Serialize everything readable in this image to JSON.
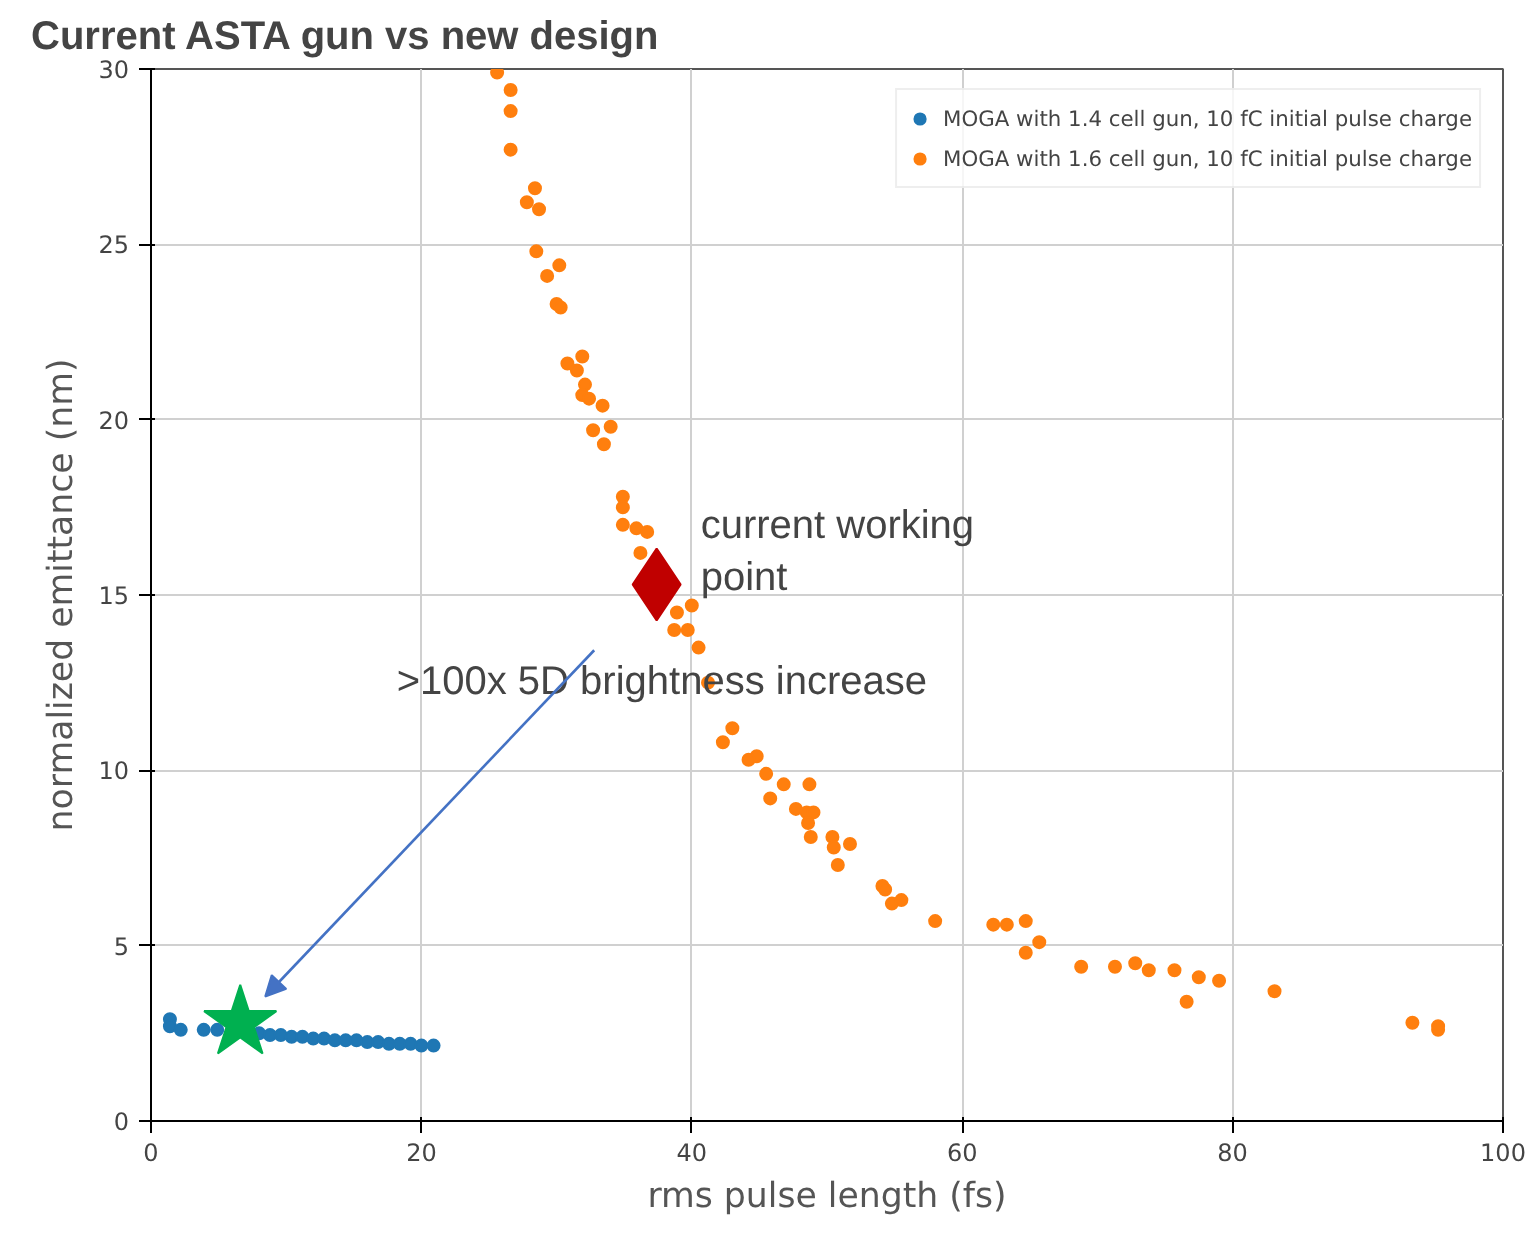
{
  "chart_data": {
    "type": "scatter",
    "title": "Current ASTA gun vs new design",
    "xlabel": "rms pulse length (fs)",
    "ylabel": "normalized emittance (nm)",
    "xlim": [
      0,
      100
    ],
    "ylim": [
      0,
      30
    ],
    "xticks": [
      0,
      20,
      40,
      60,
      80,
      100
    ],
    "yticks": [
      0,
      5,
      10,
      15,
      20,
      25,
      30
    ],
    "grid": true,
    "legend": "top right",
    "marker": "circle",
    "series": [
      {
        "name": "MOGA with 1.4 cell gun, 10 fC initial pulse charge",
        "color": "#1f77b4",
        "x": [
          1.4,
          1.4,
          2.2,
          3.9,
          4.9,
          8.0,
          8.8,
          9.6,
          10.4,
          11.2,
          12.0,
          12.8,
          13.6,
          14.4,
          15.2,
          16.0,
          16.8,
          17.6,
          18.4,
          19.2,
          20.0,
          20.9
        ],
        "values": [
          2.9,
          2.7,
          2.6,
          2.6,
          2.6,
          2.5,
          2.45,
          2.45,
          2.4,
          2.4,
          2.35,
          2.35,
          2.3,
          2.3,
          2.3,
          2.25,
          2.25,
          2.2,
          2.2,
          2.2,
          2.15,
          2.15
        ]
      },
      {
        "name": "MOGA with 1.6 cell gun, 10 fC initial pulse charge",
        "color": "#ff7f0e",
        "x": [
          25.6,
          26.6,
          26.6,
          26.6,
          28.4,
          27.8,
          28.7,
          28.5,
          30.2,
          29.3,
          30.0,
          30.3,
          30.8,
          31.9,
          31.5,
          32.1,
          31.9,
          32.4,
          33.4,
          32.7,
          34.0,
          33.5,
          34.9,
          34.9,
          34.9,
          35.9,
          36.7,
          36.2,
          40.0,
          38.9,
          38.7,
          39.7,
          40.5,
          41.2,
          43.0,
          42.3,
          44.8,
          44.2,
          45.5,
          46.8,
          48.7,
          45.8,
          47.7,
          48.5,
          49.0,
          48.6,
          48.8,
          50.4,
          51.7,
          50.5,
          50.8,
          54.1,
          54.3,
          54.8,
          55.5,
          58.0,
          62.3,
          63.3,
          64.7,
          65.7,
          64.7,
          68.8,
          71.3,
          72.8,
          73.8,
          75.7,
          77.5,
          76.6,
          79.0,
          83.1,
          93.3,
          95.2,
          95.2
        ],
        "values": [
          29.9,
          29.4,
          28.8,
          27.7,
          26.6,
          26.2,
          26.0,
          24.8,
          24.4,
          24.1,
          23.3,
          23.2,
          21.6,
          21.8,
          21.4,
          21.0,
          20.7,
          20.6,
          20.4,
          19.7,
          19.8,
          19.3,
          17.8,
          17.5,
          17.0,
          16.9,
          16.8,
          16.2,
          14.7,
          14.5,
          14.0,
          14.0,
          13.5,
          12.5,
          11.2,
          10.8,
          10.4,
          10.3,
          9.9,
          9.6,
          9.6,
          9.2,
          8.9,
          8.8,
          8.8,
          8.5,
          8.1,
          8.1,
          7.9,
          7.8,
          7.3,
          6.7,
          6.6,
          6.2,
          6.3,
          5.7,
          5.6,
          5.6,
          5.7,
          5.1,
          4.8,
          4.4,
          4.4,
          4.5,
          4.3,
          4.3,
          4.1,
          3.4,
          4.0,
          3.7,
          2.8,
          2.7,
          2.6
        ]
      },
      {
        "color": "#c00000",
        "marker": "diamond",
        "x": [
          37.4
        ],
        "values": [
          15.3
        ]
      },
      {
        "color": "#00b050",
        "marker": "star",
        "x": [
          6.6
        ],
        "values": [
          2.8
        ]
      }
    ],
    "annotations": [
      {
        "text": "current working\npoint",
        "x": 37.4,
        "y": 15.3
      },
      ">100x 5D brightness increase"
    ]
  }
}
